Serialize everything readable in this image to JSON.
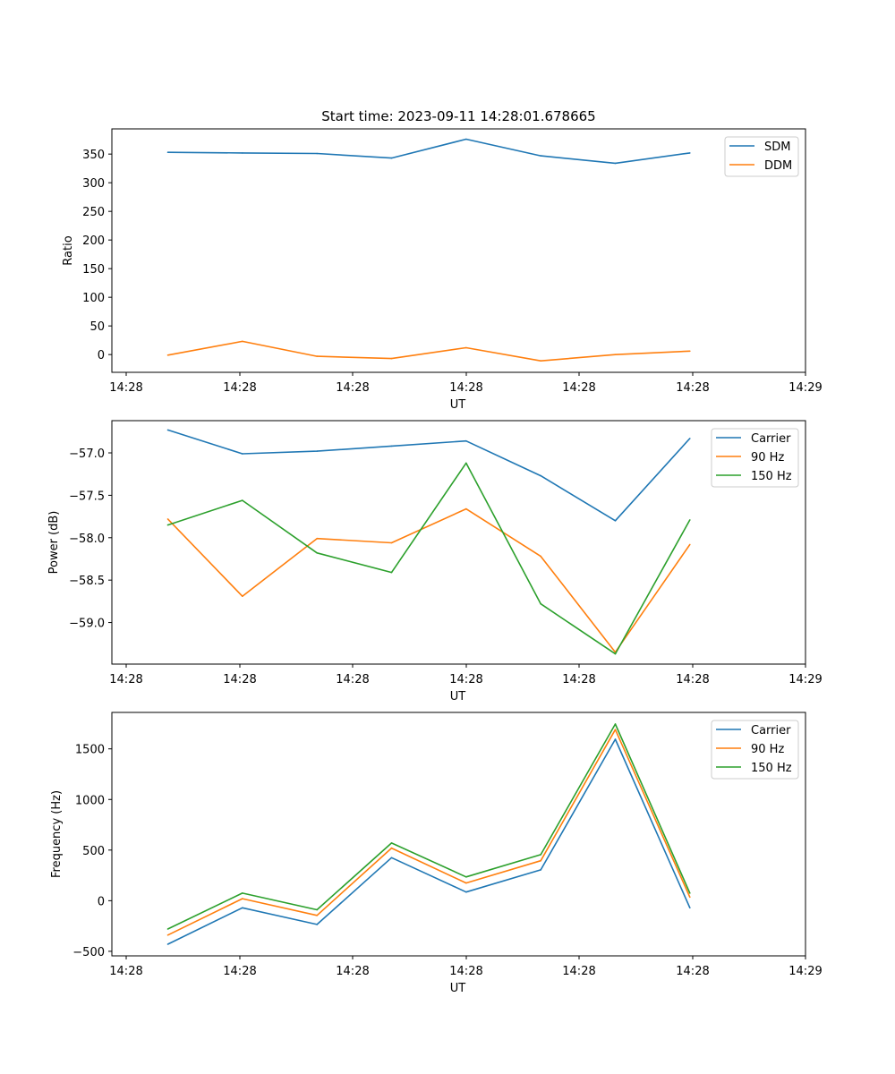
{
  "chart_data": [
    {
      "type": "line",
      "title": "Start time: 2023-09-11 14:28:01.678665",
      "xlabel": "UT",
      "ylabel": "Ratio",
      "xticks": [
        "14:28",
        "14:28",
        "14:28",
        "14:28",
        "14:28",
        "14:28",
        "14:29"
      ],
      "x_range": [
        -0.2,
        9.1
      ],
      "x": [
        0.55,
        1.55,
        2.55,
        3.55,
        4.55,
        5.55,
        6.55,
        7.55
      ],
      "yticks": [
        0,
        50,
        100,
        150,
        200,
        250,
        300,
        350
      ],
      "ylim": [
        -31,
        394
      ],
      "legend": "top-right",
      "series": [
        {
          "name": "SDM",
          "color": "#1f77b4",
          "values": [
            353,
            352,
            351,
            343,
            376,
            347,
            334,
            352
          ]
        },
        {
          "name": "DDM",
          "color": "#ff7f0e",
          "values": [
            -1,
            23,
            -3,
            -7,
            12,
            -11,
            0,
            6
          ]
        }
      ]
    },
    {
      "type": "line",
      "title": "",
      "xlabel": "UT",
      "ylabel": "Power (dB)",
      "xticks": [
        "14:28",
        "14:28",
        "14:28",
        "14:28",
        "14:28",
        "14:28",
        "14:29"
      ],
      "x_range": [
        -0.2,
        9.1
      ],
      "x": [
        0.55,
        1.55,
        2.55,
        3.55,
        4.55,
        5.55,
        6.55,
        7.55
      ],
      "yticks": [
        -57.0,
        -57.5,
        -58.0,
        -58.5,
        -59.0
      ],
      "ylim": [
        -59.49,
        -56.62
      ],
      "legend": "top-right",
      "series": [
        {
          "name": "Carrier",
          "color": "#1f77b4",
          "values": [
            -56.73,
            -57.01,
            -56.98,
            -56.92,
            -56.86,
            -57.27,
            -57.8,
            -56.83
          ]
        },
        {
          "name": "90 Hz",
          "color": "#ff7f0e",
          "values": [
            -57.78,
            -58.69,
            -58.01,
            -58.06,
            -57.66,
            -58.22,
            -59.35,
            -58.08
          ]
        },
        {
          "name": "150 Hz",
          "color": "#2ca02c",
          "values": [
            -57.85,
            -57.56,
            -58.18,
            -58.41,
            -57.12,
            -58.78,
            -59.37,
            -57.79
          ]
        }
      ]
    },
    {
      "type": "line",
      "title": "",
      "xlabel": "UT",
      "ylabel": "Frequency (Hz)",
      "xticks": [
        "14:28",
        "14:28",
        "14:28",
        "14:28",
        "14:28",
        "14:28",
        "14:29"
      ],
      "x_range": [
        -0.2,
        9.1
      ],
      "x": [
        0.55,
        1.55,
        2.55,
        3.55,
        4.55,
        5.55,
        6.55,
        7.55
      ],
      "yticks": [
        -500,
        0,
        500,
        1000,
        1500
      ],
      "ylim": [
        -545,
        1860
      ],
      "legend": "top-right",
      "series": [
        {
          "name": "Carrier",
          "color": "#1f77b4",
          "values": [
            -430,
            -70,
            -235,
            425,
            85,
            305,
            1595,
            -70
          ]
        },
        {
          "name": "90 Hz",
          "color": "#ff7f0e",
          "values": [
            -340,
            20,
            -145,
            520,
            175,
            395,
            1690,
            35
          ]
        },
        {
          "name": "150 Hz",
          "color": "#2ca02c",
          "values": [
            -280,
            75,
            -90,
            570,
            235,
            455,
            1745,
            75
          ]
        }
      ]
    }
  ]
}
